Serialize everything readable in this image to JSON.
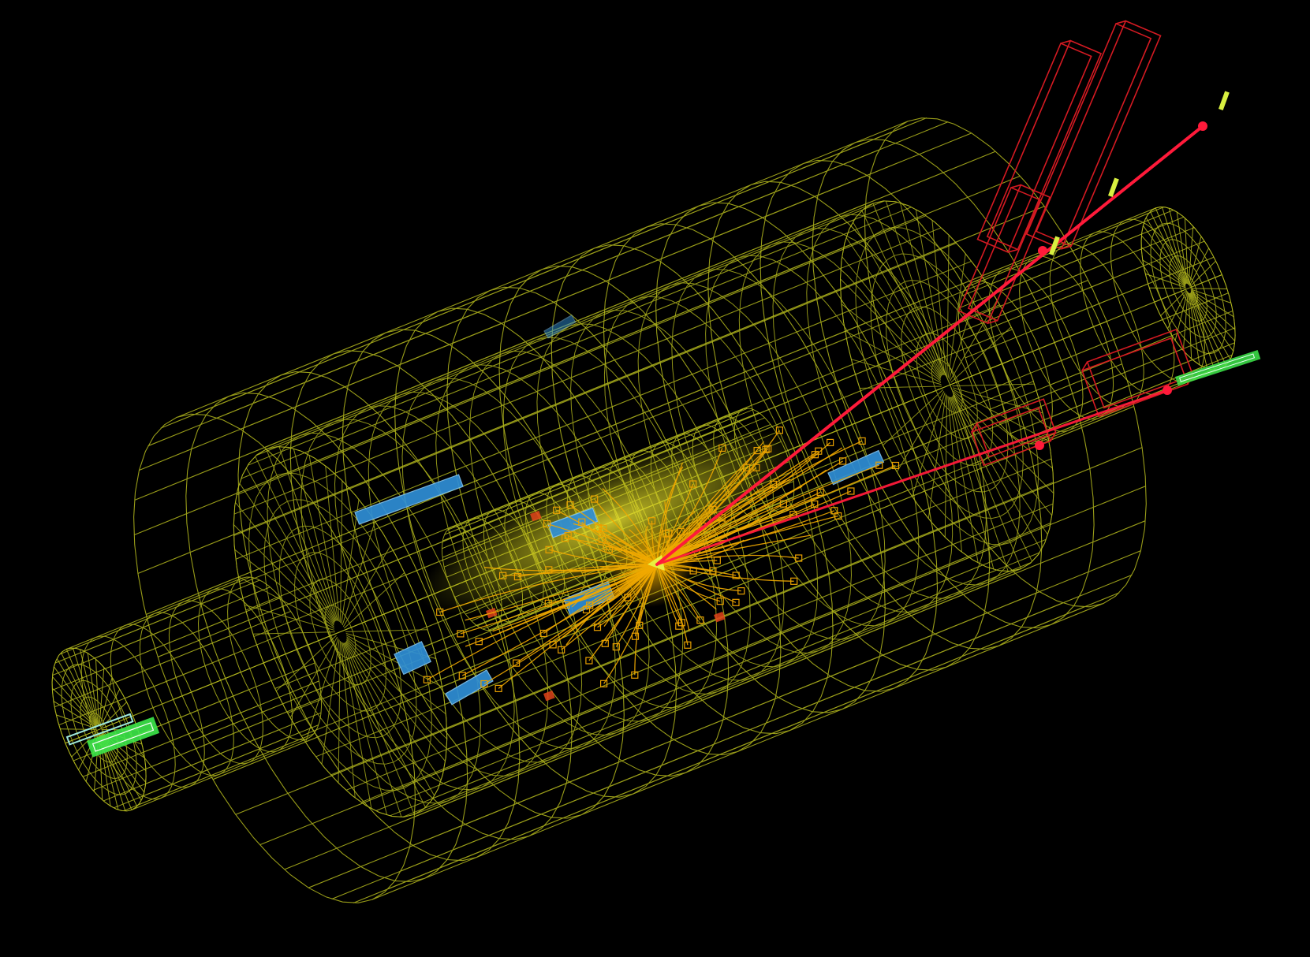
{
  "scene": {
    "subject": "particle-collision-event-display",
    "background_color": "#000000",
    "colors": {
      "detector_wireframe": "#b4b91e",
      "inner_core_glow": "#c8c81a",
      "hadron_tracks": "#f0a800",
      "track_endpoint_boxes": "#e9a000",
      "muon_tracks": "#ff1a3a",
      "muon_chambers": "#d41a22",
      "muon_hits": "#d8f040",
      "calorimeter_deposits": "#2f8fd6",
      "energy_blips": "#e0441a",
      "forward_modules_green": "#3de84a",
      "forward_modules_cyan": "#9ee8dc"
    },
    "icons": [
      "detector-barrel-wireframe",
      "endcap-disk-wireframe",
      "muon-chamber-outline",
      "track-burst",
      "calorimeter-block"
    ]
  }
}
